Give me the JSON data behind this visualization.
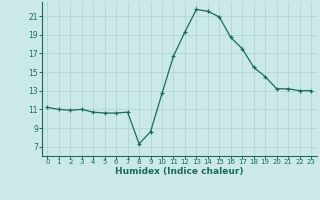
{
  "x": [
    0,
    1,
    2,
    3,
    4,
    5,
    6,
    7,
    8,
    9,
    10,
    11,
    12,
    13,
    14,
    15,
    16,
    17,
    18,
    19,
    20,
    21,
    22,
    23
  ],
  "y": [
    11.2,
    11.0,
    10.9,
    11.0,
    10.7,
    10.6,
    10.6,
    10.7,
    7.3,
    8.6,
    12.7,
    16.7,
    19.3,
    21.7,
    21.5,
    20.9,
    18.7,
    17.5,
    15.5,
    14.5,
    13.2,
    13.2,
    13.0,
    13.0
  ],
  "xlim": [
    -0.5,
    23.5
  ],
  "ylim": [
    6,
    22.5
  ],
  "yticks": [
    7,
    9,
    11,
    13,
    15,
    17,
    19,
    21
  ],
  "xticks": [
    0,
    1,
    2,
    3,
    4,
    5,
    6,
    7,
    8,
    9,
    10,
    11,
    12,
    13,
    14,
    15,
    16,
    17,
    18,
    19,
    20,
    21,
    22,
    23
  ],
  "xlabel": "Humidex (Indice chaleur)",
  "line_color": "#1a6b5a",
  "bg_color": "#cce9ea",
  "grid_color": "#b8d8d8",
  "marker": "+",
  "title": ""
}
